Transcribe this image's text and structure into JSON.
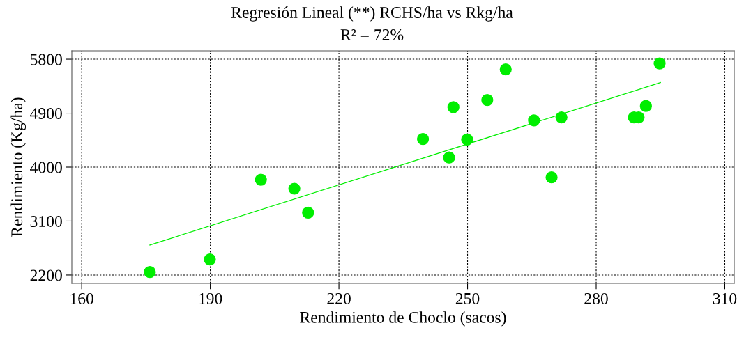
{
  "chart_data": {
    "type": "scatter",
    "title": "Regresión Lineal (**) RCHS/ha vs Rkg/ha",
    "subtitle": "R² = 72%",
    "xlabel": "Rendimiento de Choclo (sacos)",
    "ylabel": "Rendimiento (Kg/ha)",
    "series": [
      {
        "color": "#00ee00",
        "marker": "circle",
        "x": [
          175.9,
          189.9,
          201.8,
          209.6,
          212.8,
          239.6,
          245.7,
          246.7,
          249.9,
          254.6,
          258.9,
          265.5,
          269.6,
          271.9,
          288.8,
          289.9,
          291.6,
          294.8
        ],
        "values": [
          2250,
          2460,
          3790,
          3640,
          3240,
          4470,
          4160,
          5000,
          4460,
          5120,
          5630,
          4780,
          3830,
          4830,
          4830,
          4830,
          5020,
          5730
        ]
      },
      {
        "type": "line",
        "color": "#00ee00",
        "marker": "none",
        "x": [
          175.9,
          295.0
        ],
        "values": [
          2700,
          5410
        ]
      }
    ],
    "xlim": [
      157.7,
      312.2
    ],
    "ylim": [
      2060,
      5940
    ],
    "xticks": [
      160,
      190,
      220,
      250,
      280,
      310
    ],
    "yticks": [
      2200,
      3100,
      4000,
      4900,
      5800
    ],
    "grid": true
  }
}
